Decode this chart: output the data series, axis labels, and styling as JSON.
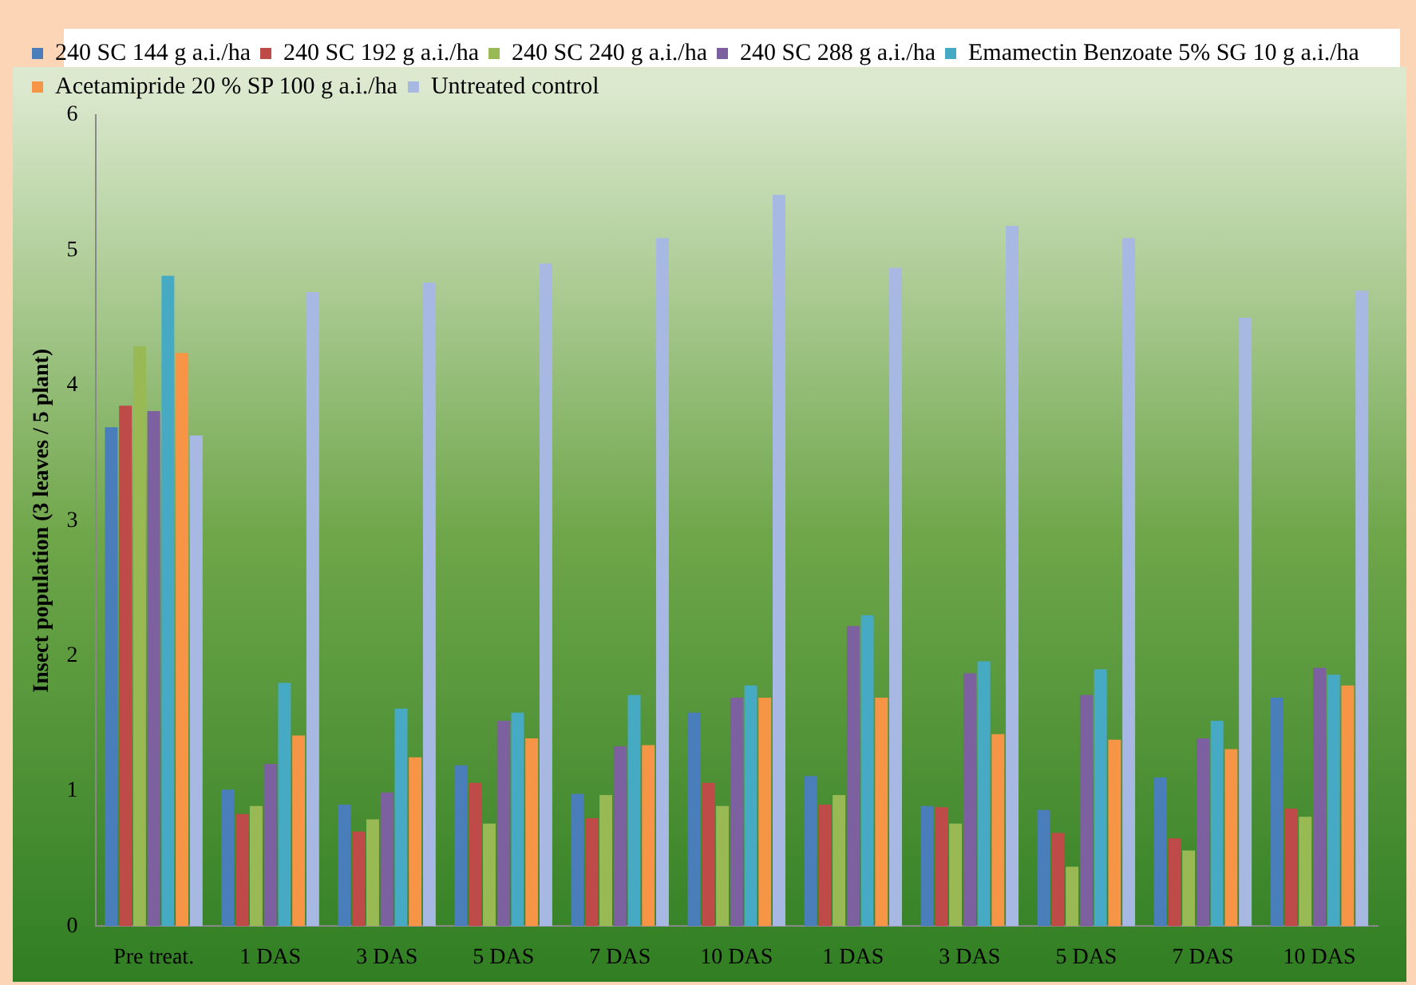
{
  "chart_data": {
    "type": "bar",
    "ylabel": "Insect population (3 leaves / 5 plant)",
    "categories": [
      "Pre treat.",
      "1 DAS",
      "3 DAS",
      "5 DAS",
      "7 DAS",
      "10 DAS",
      "1 DAS",
      "3 DAS",
      "5 DAS",
      "7 DAS",
      "10 DAS"
    ],
    "series": [
      {
        "name": "240 SC 144 g a.i./ha",
        "color": "#4a7ebb",
        "values": [
          3.69,
          1.01,
          0.9,
          1.19,
          0.98,
          1.58,
          1.11,
          0.89,
          0.86,
          1.1,
          1.69
        ]
      },
      {
        "name": "240 SC 192 g a.i./ha",
        "color": "#be4b48",
        "values": [
          3.85,
          0.83,
          0.7,
          1.06,
          0.8,
          1.06,
          0.9,
          0.88,
          0.69,
          0.65,
          0.87
        ]
      },
      {
        "name": "240 SC 240 g a.i./ha",
        "color": "#98b954",
        "values": [
          4.29,
          0.89,
          0.79,
          0.76,
          0.97,
          0.89,
          0.97,
          0.76,
          0.44,
          0.56,
          0.81
        ]
      },
      {
        "name": "240 SC 288 g a.i./ha",
        "color": "#7d60a0",
        "values": [
          3.81,
          1.2,
          0.99,
          1.52,
          1.33,
          1.69,
          2.22,
          1.87,
          1.71,
          1.39,
          1.91
        ]
      },
      {
        "name": "Emamectin Benzoate 5% SG 10 g a.i./ha",
        "color": "#46aac5",
        "values": [
          4.81,
          1.8,
          1.61,
          1.58,
          1.71,
          1.78,
          2.3,
          1.96,
          1.9,
          1.52,
          1.86
        ]
      },
      {
        "name": "Acetamipride 20 % SP 100 g a.i./ha",
        "color": "#f69546",
        "values": [
          4.24,
          1.41,
          1.25,
          1.39,
          1.34,
          1.69,
          1.69,
          1.42,
          1.38,
          1.31,
          1.78
        ]
      },
      {
        "name": "Untreated control",
        "color": "#a7b9e3",
        "values": [
          3.63,
          4.69,
          4.76,
          4.9,
          5.09,
          5.41,
          4.87,
          5.18,
          5.09,
          4.5,
          4.7
        ]
      }
    ],
    "ylim": [
      0,
      6
    ],
    "yticks": [
      0,
      1,
      2,
      3,
      4,
      5,
      6
    ],
    "grid": false,
    "legend": "top"
  }
}
